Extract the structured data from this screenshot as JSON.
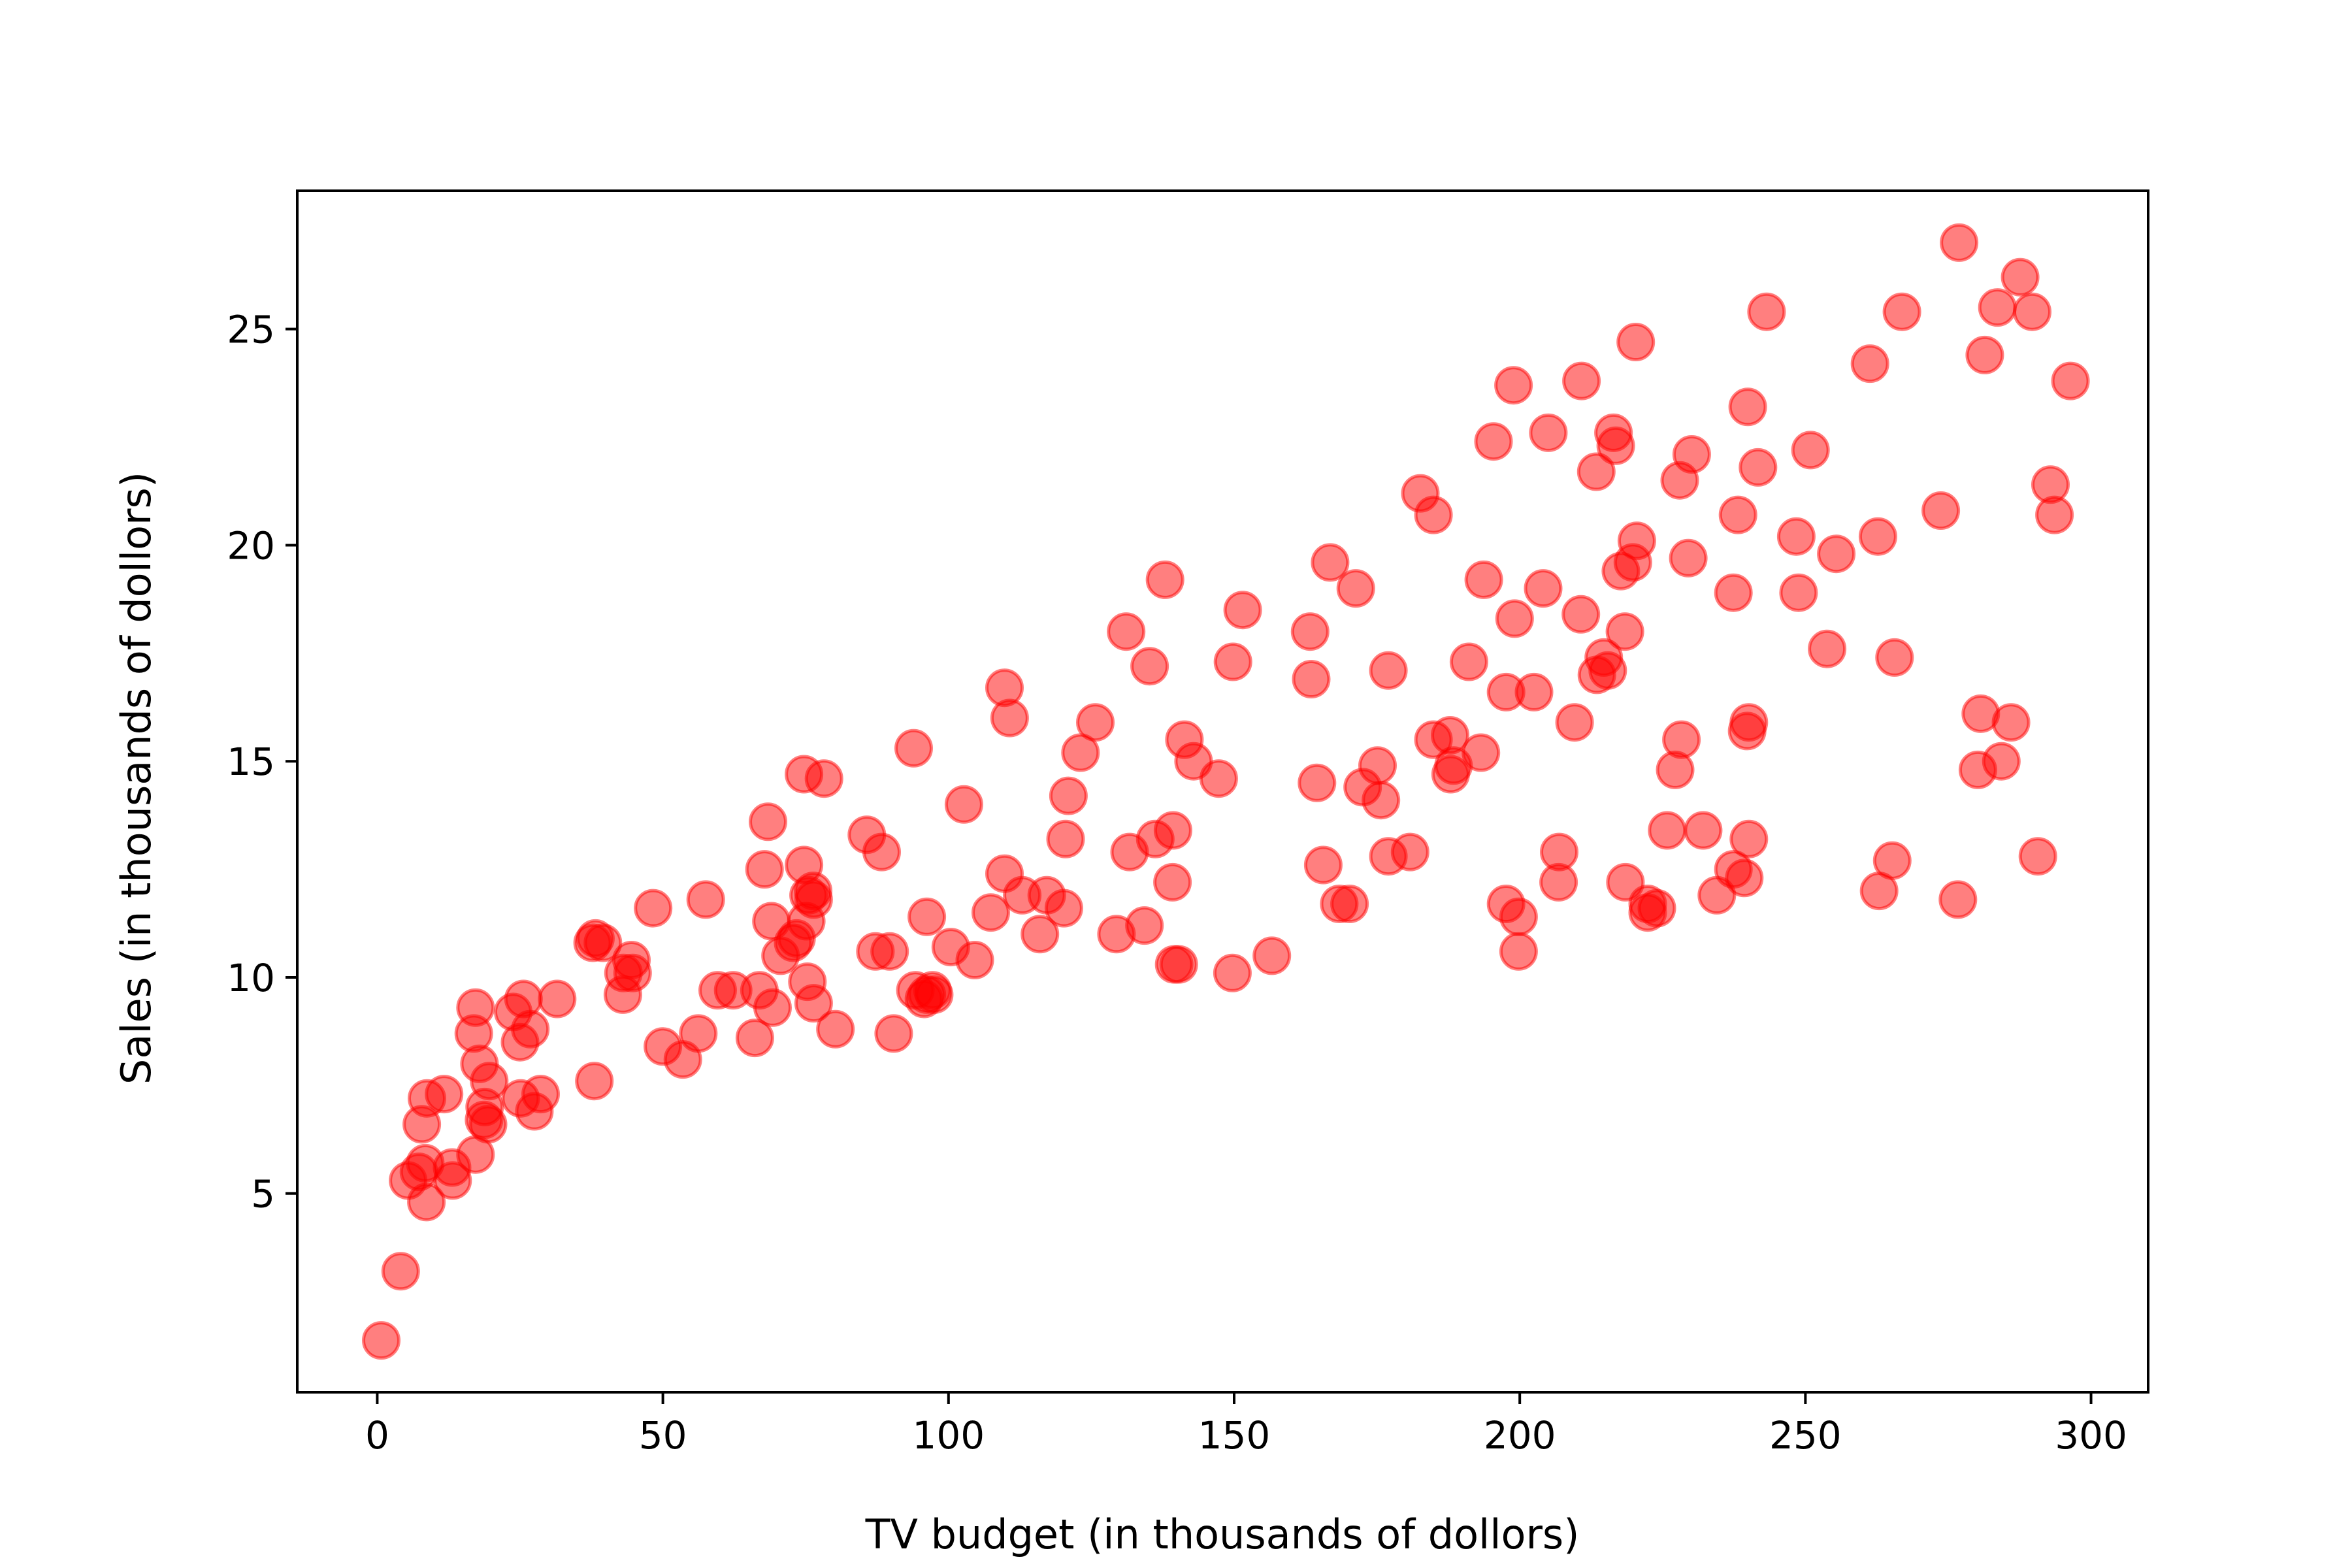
{
  "chart_data": {
    "type": "scatter",
    "title": "",
    "xlabel": "TV budget (in thousands of dollors)",
    "ylabel": "Sales (in thousands of dollors)",
    "xlim": [
      -14,
      310
    ],
    "ylim": [
      0.4,
      28.2
    ],
    "xticks": [
      0,
      50,
      100,
      150,
      200,
      250,
      300
    ],
    "yticks": [
      5,
      10,
      15,
      20,
      25
    ],
    "grid": false,
    "legend": "none",
    "marker_color": "#ff0000",
    "marker_alpha": 0.5,
    "points": [
      [
        0.7,
        1.6
      ],
      [
        4.1,
        3.2
      ],
      [
        5.4,
        5.3
      ],
      [
        7.3,
        5.5
      ],
      [
        7.8,
        6.6
      ],
      [
        8.4,
        5.7
      ],
      [
        8.6,
        4.8
      ],
      [
        8.7,
        7.2
      ],
      [
        11.7,
        7.3
      ],
      [
        13.1,
        5.6
      ],
      [
        13.2,
        5.3
      ],
      [
        16.9,
        8.7
      ],
      [
        17.2,
        5.9
      ],
      [
        17.2,
        9.3
      ],
      [
        17.9,
        8.0
      ],
      [
        18.7,
        6.7
      ],
      [
        18.8,
        7.0
      ],
      [
        19.4,
        6.6
      ],
      [
        19.6,
        7.6
      ],
      [
        23.8,
        9.2
      ],
      [
        25.1,
        7.2
      ],
      [
        25.0,
        8.5
      ],
      [
        25.6,
        9.5
      ],
      [
        26.8,
        8.8
      ],
      [
        27.5,
        6.9
      ],
      [
        28.6,
        7.3
      ],
      [
        31.5,
        9.5
      ],
      [
        37.7,
        10.8
      ],
      [
        38.0,
        7.6
      ],
      [
        38.2,
        10.9
      ],
      [
        39.5,
        10.8
      ],
      [
        43.0,
        9.6
      ],
      [
        43.1,
        10.1
      ],
      [
        44.5,
        10.4
      ],
      [
        44.7,
        10.1
      ],
      [
        48.3,
        11.6
      ],
      [
        50.0,
        8.4
      ],
      [
        53.5,
        8.1
      ],
      [
        56.2,
        8.7
      ],
      [
        57.5,
        11.8
      ],
      [
        59.6,
        9.7
      ],
      [
        62.3,
        9.7
      ],
      [
        66.1,
        8.6
      ],
      [
        66.9,
        9.7
      ],
      [
        67.8,
        12.5
      ],
      [
        68.4,
        13.6
      ],
      [
        69.0,
        11.3
      ],
      [
        69.2,
        9.3
      ],
      [
        70.6,
        10.5
      ],
      [
        72.8,
        10.8
      ],
      [
        73.4,
        10.9
      ],
      [
        74.7,
        12.6
      ],
      [
        74.7,
        14.7
      ],
      [
        75.1,
        11.3
      ],
      [
        75.3,
        9.9
      ],
      [
        75.5,
        11.9
      ],
      [
        76.3,
        12.0
      ],
      [
        76.4,
        9.4
      ],
      [
        76.4,
        11.8
      ],
      [
        78.2,
        14.6
      ],
      [
        80.2,
        8.8
      ],
      [
        85.7,
        13.3
      ],
      [
        87.2,
        10.6
      ],
      [
        88.3,
        12.9
      ],
      [
        89.7,
        10.6
      ],
      [
        90.4,
        8.7
      ],
      [
        93.9,
        15.3
      ],
      [
        94.2,
        9.7
      ],
      [
        95.7,
        9.5
      ],
      [
        96.2,
        11.4
      ],
      [
        96.2,
        9.6
      ],
      [
        97.2,
        9.7
      ],
      [
        97.5,
        9.6
      ],
      [
        100.4,
        10.7
      ],
      [
        102.7,
        14.0
      ],
      [
        104.6,
        10.4
      ],
      [
        107.4,
        11.5
      ],
      [
        109.8,
        12.4
      ],
      [
        109.8,
        16.7
      ],
      [
        110.7,
        16.0
      ],
      [
        112.9,
        11.9
      ],
      [
        116.0,
        11.0
      ],
      [
        117.2,
        11.9
      ],
      [
        120.2,
        11.6
      ],
      [
        120.5,
        13.2
      ],
      [
        121.0,
        14.2
      ],
      [
        123.1,
        15.2
      ],
      [
        125.7,
        15.9
      ],
      [
        129.4,
        11.0
      ],
      [
        131.1,
        18.0
      ],
      [
        131.7,
        12.9
      ],
      [
        134.3,
        11.2
      ],
      [
        135.2,
        17.2
      ],
      [
        136.2,
        13.2
      ],
      [
        137.9,
        19.2
      ],
      [
        139.2,
        12.2
      ],
      [
        139.3,
        13.4
      ],
      [
        139.5,
        10.3
      ],
      [
        140.3,
        10.3
      ],
      [
        141.3,
        15.5
      ],
      [
        142.9,
        15.0
      ],
      [
        147.3,
        14.6
      ],
      [
        149.7,
        10.1
      ],
      [
        149.8,
        17.3
      ],
      [
        151.5,
        18.5
      ],
      [
        156.6,
        10.5
      ],
      [
        163.3,
        18.0
      ],
      [
        163.5,
        16.9
      ],
      [
        164.5,
        14.5
      ],
      [
        165.6,
        12.6
      ],
      [
        166.8,
        19.6
      ],
      [
        168.4,
        11.7
      ],
      [
        170.2,
        11.7
      ],
      [
        171.3,
        19.0
      ],
      [
        172.5,
        14.4
      ],
      [
        175.1,
        14.9
      ],
      [
        175.7,
        14.1
      ],
      [
        177.0,
        12.8
      ],
      [
        177.0,
        17.1
      ],
      [
        180.8,
        12.9
      ],
      [
        182.6,
        21.2
      ],
      [
        184.9,
        15.5
      ],
      [
        184.9,
        20.7
      ],
      [
        187.8,
        15.6
      ],
      [
        187.9,
        14.7
      ],
      [
        188.4,
        14.9
      ],
      [
        191.1,
        17.3
      ],
      [
        193.2,
        15.2
      ],
      [
        193.7,
        19.2
      ],
      [
        195.4,
        22.4
      ],
      [
        197.6,
        11.7
      ],
      [
        197.6,
        16.6
      ],
      [
        198.9,
        23.7
      ],
      [
        199.1,
        18.3
      ],
      [
        199.8,
        11.4
      ],
      [
        199.8,
        10.6
      ],
      [
        202.5,
        16.6
      ],
      [
        204.1,
        19.0
      ],
      [
        205.0,
        22.6
      ],
      [
        206.8,
        12.2
      ],
      [
        206.9,
        12.9
      ],
      [
        209.6,
        15.9
      ],
      [
        210.7,
        18.4
      ],
      [
        210.8,
        23.8
      ],
      [
        213.4,
        21.7
      ],
      [
        213.5,
        17.0
      ],
      [
        214.7,
        17.4
      ],
      [
        215.4,
        17.1
      ],
      [
        216.4,
        22.6
      ],
      [
        216.8,
        22.3
      ],
      [
        217.7,
        19.4
      ],
      [
        218.4,
        18.0
      ],
      [
        218.5,
        12.2
      ],
      [
        219.8,
        19.6
      ],
      [
        220.3,
        24.7
      ],
      [
        220.5,
        20.1
      ],
      [
        222.4,
        11.7
      ],
      [
        222.4,
        11.5
      ],
      [
        224.0,
        11.6
      ],
      [
        225.8,
        13.4
      ],
      [
        227.2,
        14.8
      ],
      [
        228.0,
        21.5
      ],
      [
        228.3,
        15.5
      ],
      [
        229.5,
        19.7
      ],
      [
        230.1,
        22.1
      ],
      [
        232.1,
        13.4
      ],
      [
        234.5,
        11.9
      ],
      [
        237.4,
        12.5
      ],
      [
        237.4,
        18.9
      ],
      [
        238.2,
        20.7
      ],
      [
        239.3,
        12.3
      ],
      [
        239.8,
        15.7
      ],
      [
        239.9,
        23.2
      ],
      [
        240.1,
        13.2
      ],
      [
        240.1,
        15.9
      ],
      [
        241.7,
        21.8
      ],
      [
        243.2,
        25.4
      ],
      [
        248.4,
        20.2
      ],
      [
        248.8,
        18.9
      ],
      [
        250.9,
        22.2
      ],
      [
        253.8,
        17.6
      ],
      [
        255.4,
        19.8
      ],
      [
        261.3,
        24.2
      ],
      [
        262.7,
        20.2
      ],
      [
        262.9,
        12.0
      ],
      [
        265.2,
        12.7
      ],
      [
        265.6,
        17.4
      ],
      [
        266.9,
        25.4
      ],
      [
        273.7,
        20.8
      ],
      [
        276.7,
        11.8
      ],
      [
        276.9,
        27.0
      ],
      [
        280.2,
        14.8
      ],
      [
        280.7,
        16.1
      ],
      [
        281.4,
        24.4
      ],
      [
        283.6,
        25.5
      ],
      [
        284.3,
        15.0
      ],
      [
        286.0,
        15.9
      ],
      [
        287.6,
        26.2
      ],
      [
        289.7,
        25.4
      ],
      [
        290.7,
        12.8
      ],
      [
        292.9,
        21.4
      ],
      [
        293.6,
        20.7
      ],
      [
        296.4,
        23.8
      ]
    ]
  }
}
